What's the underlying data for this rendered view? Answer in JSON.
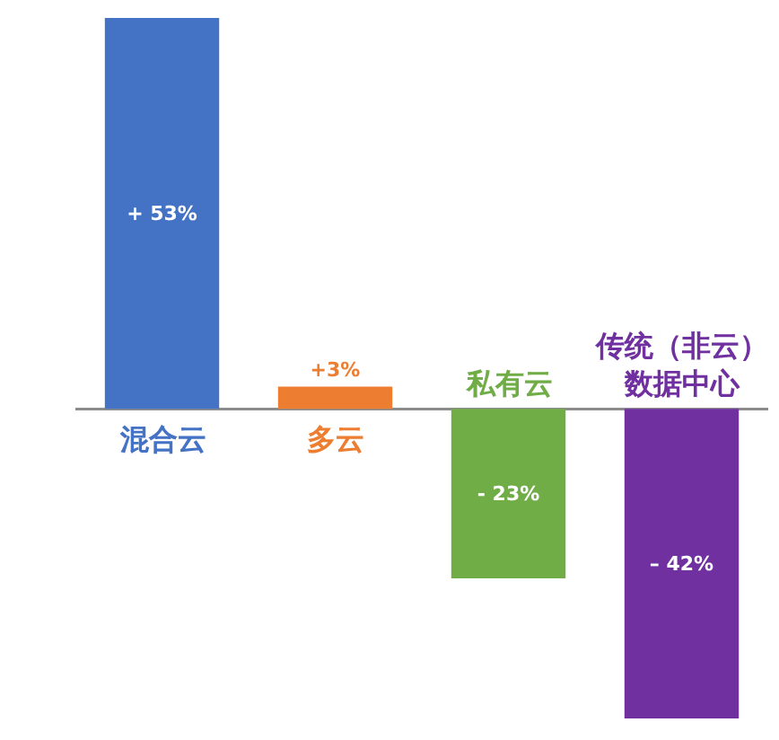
{
  "chart_data": {
    "type": "bar",
    "categories": [
      "混合云",
      "多云",
      "私有云",
      "传统（非云）数据中心"
    ],
    "values": [
      53,
      3,
      -23,
      -42
    ],
    "colors": [
      "#4472c4",
      "#ed7d31",
      "#70ad47",
      "#7030a0"
    ],
    "value_labels": [
      "+ 53%",
      "+3%",
      "- 23%",
      "– 42%"
    ],
    "tick_labels": "x"
  }
}
